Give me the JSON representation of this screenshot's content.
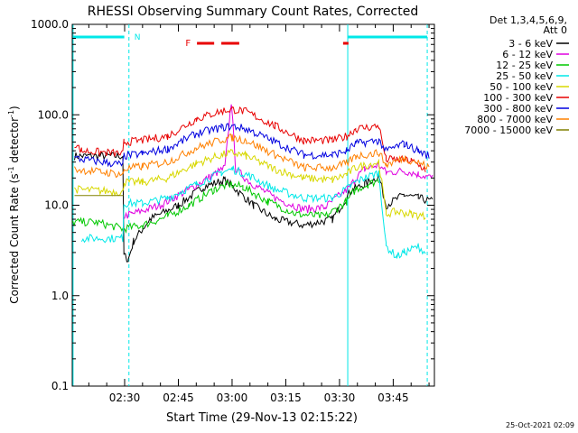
{
  "chart_data": {
    "type": "line",
    "title": "RHESSI Observing Summary Count Rates, Corrected",
    "xlabel": "Start Time (29-Nov-13 02:15:22)",
    "ylabel_main": "Corrected Count Rate (s",
    "ylabel_sup1": "-1",
    "ylabel_mid": " detector",
    "ylabel_sup2": "-1",
    "ylabel_end": ")",
    "y_scale": "log",
    "ylim": [
      0.1,
      1000
    ],
    "y_ticks": [
      {
        "v": 0.1,
        "label": "0.1"
      },
      {
        "v": 1,
        "label": "1.0"
      },
      {
        "v": 10,
        "label": "10.0"
      },
      {
        "v": 100,
        "label": "100.0"
      },
      {
        "v": 1000,
        "label": "1000.0"
      }
    ],
    "xlim_minutes": [
      15.37,
      116.5
    ],
    "x_ticks": [
      {
        "v": 30,
        "label": "02:30"
      },
      {
        "v": 45,
        "label": "02:45"
      },
      {
        "v": 60,
        "label": "03:00"
      },
      {
        "v": 75,
        "label": "03:15"
      },
      {
        "v": 90,
        "label": "03:30"
      },
      {
        "v": 105,
        "label": "03:45"
      }
    ],
    "legend_header": [
      "Det 1,3,4,5,6,9,",
      "Att 0"
    ],
    "legend_placement": "right",
    "night_marker": "N",
    "flare_marker": "F",
    "timestamp": "25-Oct-2021 02:09",
    "series": [
      {
        "name": "3 - 6 keV",
        "color": "#000000",
        "values": [
          [
            16,
            35
          ],
          [
            29.5,
            35
          ],
          [
            29.8,
            2.8
          ],
          [
            31,
            2.5
          ],
          [
            32.5,
            4
          ],
          [
            37,
            7
          ],
          [
            45,
            10
          ],
          [
            52,
            16
          ],
          [
            58,
            19
          ],
          [
            61,
            15
          ],
          [
            66,
            10
          ],
          [
            72,
            7
          ],
          [
            80,
            6
          ],
          [
            88,
            7
          ],
          [
            93,
            14
          ],
          [
            94,
            15
          ],
          [
            97,
            17
          ],
          [
            101,
            21
          ],
          [
            103,
            10
          ],
          [
            108,
            13
          ],
          [
            112,
            12
          ],
          [
            116,
            11
          ]
        ]
      },
      {
        "name": "6 - 12 keV",
        "color": "#e000e0",
        "values": [
          [
            29.6,
            7.5
          ],
          [
            32,
            8
          ],
          [
            40,
            10
          ],
          [
            48,
            15
          ],
          [
            55,
            22
          ],
          [
            58,
            26
          ],
          [
            59.8,
            140
          ],
          [
            61,
            25
          ],
          [
            65,
            18
          ],
          [
            72,
            12
          ],
          [
            80,
            9
          ],
          [
            86,
            9.5
          ],
          [
            93,
            16
          ],
          [
            94.5,
            20
          ],
          [
            97,
            25
          ],
          [
            101,
            28
          ],
          [
            103,
            23
          ],
          [
            108,
            24
          ],
          [
            112,
            22
          ],
          [
            116,
            20
          ]
        ]
      },
      {
        "name": "12 - 25 keV",
        "color": "#00c800",
        "values": [
          [
            15.5,
            6.5
          ],
          [
            22,
            6.5
          ],
          [
            29.6,
            5.5
          ],
          [
            35,
            6
          ],
          [
            42,
            7.5
          ],
          [
            48,
            10
          ],
          [
            55,
            15
          ],
          [
            59,
            17
          ],
          [
            63,
            16
          ],
          [
            70,
            11
          ],
          [
            78,
            8
          ],
          [
            86,
            7.5
          ],
          [
            92,
            11
          ],
          [
            94.5,
            15
          ],
          [
            98,
            17
          ],
          [
            101,
            19
          ]
        ]
      },
      {
        "name": "25 - 50 keV",
        "color": "#00e8e8",
        "values": [
          [
            18,
            4.3
          ],
          [
            29.5,
            4.3
          ],
          [
            29.8,
            10.5
          ],
          [
            35,
            10.5
          ],
          [
            42,
            12
          ],
          [
            50,
            17
          ],
          [
            57,
            23
          ],
          [
            60,
            25
          ],
          [
            64,
            22
          ],
          [
            72,
            15
          ],
          [
            80,
            12
          ],
          [
            88,
            12
          ],
          [
            93,
            16
          ],
          [
            94.5,
            18
          ],
          [
            97,
            20
          ],
          [
            101,
            23
          ],
          [
            103,
            3.5
          ],
          [
            106,
            2.7
          ],
          [
            108,
            3
          ],
          [
            112,
            3.5
          ],
          [
            114,
            3
          ]
        ]
      },
      {
        "name": "50 - 100 keV",
        "color": "#d8d800",
        "values": [
          [
            16,
            15
          ],
          [
            29.5,
            14
          ],
          [
            29.8,
            18
          ],
          [
            35,
            18
          ],
          [
            42,
            20
          ],
          [
            50,
            29
          ],
          [
            57,
            36
          ],
          [
            60,
            38
          ],
          [
            64,
            35
          ],
          [
            72,
            25
          ],
          [
            80,
            20
          ],
          [
            88,
            19
          ],
          [
            92,
            22
          ],
          [
            94.5,
            26
          ],
          [
            101,
            30
          ],
          [
            103,
            8
          ],
          [
            106,
            8.5
          ],
          [
            110,
            8
          ],
          [
            114,
            7.5
          ]
        ]
      },
      {
        "name": "100 - 300 keV",
        "color": "#e80000",
        "values": [
          [
            16,
            48
          ],
          [
            18,
            40
          ],
          [
            29.5,
            37
          ],
          [
            29.8,
            50
          ],
          [
            35,
            52
          ],
          [
            42,
            58
          ],
          [
            50,
            90
          ],
          [
            57,
            110
          ],
          [
            60,
            115
          ],
          [
            64,
            108
          ],
          [
            72,
            75
          ],
          [
            80,
            52
          ],
          [
            88,
            52
          ],
          [
            92,
            58
          ],
          [
            94.5,
            70
          ],
          [
            101,
            75
          ],
          [
            103,
            32
          ],
          [
            106,
            32
          ],
          [
            110,
            31
          ],
          [
            114,
            25
          ]
        ]
      },
      {
        "name": "300 - 800 keV",
        "color": "#0000e0",
        "values": [
          [
            16,
            33
          ],
          [
            29.5,
            28
          ],
          [
            29.8,
            35
          ],
          [
            35,
            37
          ],
          [
            42,
            42
          ],
          [
            50,
            62
          ],
          [
            57,
            72
          ],
          [
            60,
            75
          ],
          [
            64,
            70
          ],
          [
            72,
            50
          ],
          [
            80,
            36
          ],
          [
            88,
            36
          ],
          [
            92,
            40
          ],
          [
            94.5,
            48
          ],
          [
            101,
            52
          ],
          [
            103,
            40
          ],
          [
            108,
            48
          ],
          [
            112,
            40
          ],
          [
            115,
            35
          ]
        ]
      },
      {
        "name": "800 - 7000 keV",
        "color": "#ff8000",
        "values": [
          [
            16,
            25
          ],
          [
            29.5,
            22
          ],
          [
            29.8,
            25
          ],
          [
            35,
            27
          ],
          [
            42,
            30
          ],
          [
            50,
            43
          ],
          [
            57,
            53
          ],
          [
            60,
            56
          ],
          [
            64,
            52
          ],
          [
            72,
            36
          ],
          [
            80,
            26
          ],
          [
            88,
            26
          ],
          [
            92,
            29
          ],
          [
            94.5,
            35
          ],
          [
            101,
            38
          ],
          [
            103,
            28
          ],
          [
            108,
            33
          ],
          [
            112,
            30
          ],
          [
            115,
            26
          ]
        ]
      },
      {
        "name": "7000 - 15000 keV",
        "color": "#808000",
        "values": [
          [
            16,
            12.8
          ],
          [
            29.6,
            12.8
          ]
        ]
      }
    ]
  }
}
